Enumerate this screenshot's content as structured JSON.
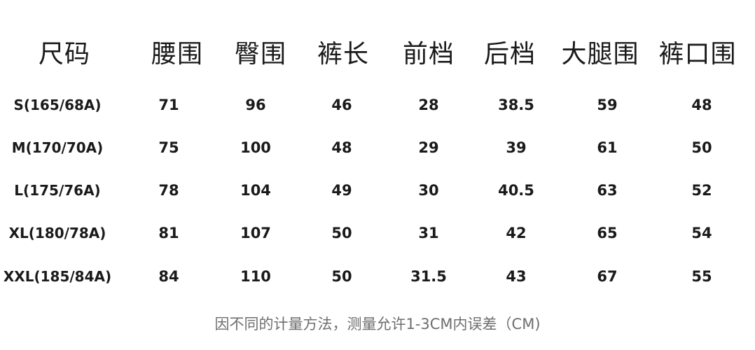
{
  "table": {
    "headers": [
      "尺码",
      "腰围",
      "臀围",
      "裤长",
      "前档",
      "后档",
      "大腿围",
      "裤口围"
    ],
    "rows": [
      [
        "S(165/68A)",
        "71",
        "96",
        "46",
        "28",
        "38.5",
        "59",
        "48"
      ],
      [
        "M(170/70A)",
        "75",
        "100",
        "48",
        "29",
        "39",
        "61",
        "50"
      ],
      [
        "L(175/76A)",
        "78",
        "104",
        "49",
        "30",
        "40.5",
        "63",
        "52"
      ],
      [
        "XL(180/78A)",
        "81",
        "107",
        "50",
        "31",
        "42",
        "65",
        "54"
      ],
      [
        "XXL(185/84A)",
        "84",
        "110",
        "50",
        "31.5",
        "43",
        "67",
        "55"
      ]
    ]
  },
  "footnote": "因不同的计量方法，测量允许1-3CM内误差（CM)"
}
